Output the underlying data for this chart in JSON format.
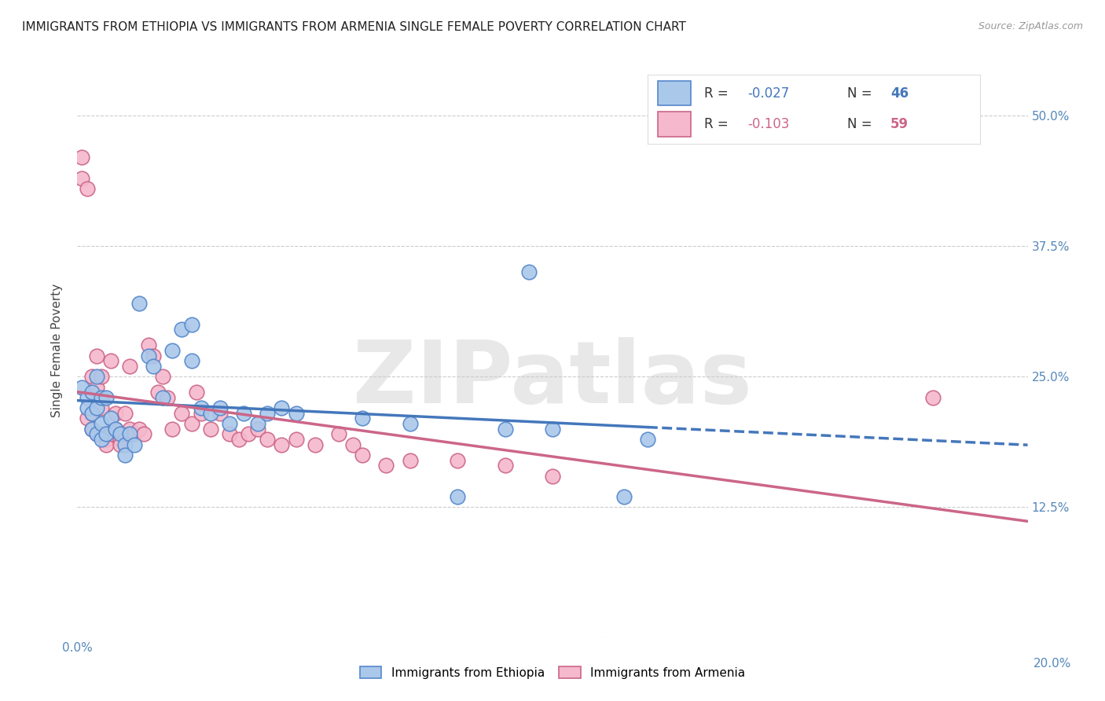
{
  "title": "IMMIGRANTS FROM ETHIOPIA VS IMMIGRANTS FROM ARMENIA SINGLE FEMALE POVERTY CORRELATION CHART",
  "source": "Source: ZipAtlas.com",
  "ylabel": "Single Female Poverty",
  "xlim": [
    0.0,
    0.2
  ],
  "ylim": [
    0.0,
    0.55
  ],
  "xticks": [
    0.0,
    0.04,
    0.08,
    0.12,
    0.16,
    0.2
  ],
  "yticks": [
    0.0,
    0.125,
    0.25,
    0.375,
    0.5
  ],
  "legend_r_eth": "-0.027",
  "legend_n_eth": "46",
  "legend_r_arm": "-0.103",
  "legend_n_arm": "59",
  "color_eth_face": "#aac8ea",
  "color_eth_edge": "#5588cc",
  "color_arm_face": "#f5b8cc",
  "color_arm_edge": "#cc6688",
  "line_eth": "#4477bb",
  "line_arm": "#cc6688",
  "grid_color": "#cccccc",
  "watermark_text": "ZIPatlas",
  "ethiopia_x": [
    0.001,
    0.002,
    0.002,
    0.003,
    0.003,
    0.003,
    0.004,
    0.004,
    0.004,
    0.005,
    0.005,
    0.005,
    0.006,
    0.006,
    0.007,
    0.008,
    0.009,
    0.01,
    0.01,
    0.011,
    0.012,
    0.013,
    0.015,
    0.016,
    0.018,
    0.02,
    0.022,
    0.024,
    0.024,
    0.026,
    0.028,
    0.03,
    0.032,
    0.035,
    0.038,
    0.04,
    0.043,
    0.046,
    0.06,
    0.07,
    0.08,
    0.09,
    0.095,
    0.1,
    0.115,
    0.12
  ],
  "ethiopia_y": [
    0.24,
    0.23,
    0.22,
    0.235,
    0.215,
    0.2,
    0.25,
    0.22,
    0.195,
    0.23,
    0.205,
    0.19,
    0.23,
    0.195,
    0.21,
    0.2,
    0.195,
    0.185,
    0.175,
    0.195,
    0.185,
    0.32,
    0.27,
    0.26,
    0.23,
    0.275,
    0.295,
    0.3,
    0.265,
    0.22,
    0.215,
    0.22,
    0.205,
    0.215,
    0.205,
    0.215,
    0.22,
    0.215,
    0.21,
    0.205,
    0.135,
    0.2,
    0.35,
    0.2,
    0.135,
    0.19
  ],
  "armenia_x": [
    0.001,
    0.001,
    0.002,
    0.002,
    0.003,
    0.003,
    0.003,
    0.004,
    0.004,
    0.004,
    0.005,
    0.005,
    0.005,
    0.006,
    0.006,
    0.006,
    0.007,
    0.007,
    0.008,
    0.008,
    0.009,
    0.009,
    0.009,
    0.01,
    0.01,
    0.011,
    0.011,
    0.012,
    0.013,
    0.014,
    0.015,
    0.016,
    0.017,
    0.018,
    0.019,
    0.02,
    0.022,
    0.024,
    0.025,
    0.026,
    0.028,
    0.03,
    0.032,
    0.034,
    0.036,
    0.038,
    0.04,
    0.043,
    0.046,
    0.05,
    0.055,
    0.058,
    0.06,
    0.065,
    0.07,
    0.08,
    0.09,
    0.1,
    0.18
  ],
  "armenia_y": [
    0.46,
    0.44,
    0.43,
    0.21,
    0.25,
    0.215,
    0.2,
    0.27,
    0.24,
    0.195,
    0.25,
    0.22,
    0.195,
    0.195,
    0.19,
    0.185,
    0.265,
    0.195,
    0.215,
    0.2,
    0.195,
    0.19,
    0.185,
    0.215,
    0.195,
    0.26,
    0.2,
    0.195,
    0.2,
    0.195,
    0.28,
    0.27,
    0.235,
    0.25,
    0.23,
    0.2,
    0.215,
    0.205,
    0.235,
    0.215,
    0.2,
    0.215,
    0.195,
    0.19,
    0.195,
    0.2,
    0.19,
    0.185,
    0.19,
    0.185,
    0.195,
    0.185,
    0.175,
    0.165,
    0.17,
    0.17,
    0.165,
    0.155,
    0.23
  ]
}
